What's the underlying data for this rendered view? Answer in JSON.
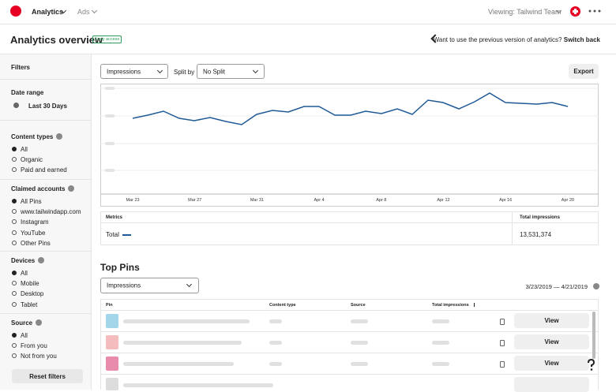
{
  "topbar": {
    "app": "Analytics",
    "ads": "Ads",
    "viewing": "Viewing: Tailwind Team"
  },
  "header": {
    "title": "Analytics overview",
    "badge": "Early access",
    "prompt": "Want to use the previous version of analytics?",
    "link": "Switch back"
  },
  "sidebar": {
    "filters": "Filters",
    "date_range": {
      "label": "Date range",
      "value": "Last 30 Days"
    },
    "groups": [
      {
        "title": "Content types",
        "options": [
          "All",
          "Organic",
          "Paid and earned"
        ]
      },
      {
        "title": "Claimed accounts",
        "options": [
          "All Pins",
          "www.tailwindapp.com",
          "Instagram",
          "YouTube",
          "Other Pins"
        ]
      },
      {
        "title": "Devices",
        "options": [
          "All",
          "Mobile",
          "Desktop",
          "Tablet"
        ]
      },
      {
        "title": "Source",
        "options": [
          "All",
          "From you",
          "Not from you"
        ]
      }
    ],
    "reset": "Reset filters"
  },
  "main": {
    "metric_select": "Impressions",
    "split_label": "Split by",
    "split_select": "No Split",
    "export": "Export",
    "x_labels": [
      "Mar 23",
      "Mar 27",
      "Mar 31",
      "Apr 4",
      "Apr 8",
      "Apr 12",
      "Apr 16",
      "Apr 20"
    ],
    "metrics": {
      "header": "Metrics",
      "column": "Total impressions",
      "row_label": "Total",
      "row_value": "13,531,374"
    },
    "top_pins": {
      "title": "Top Pins",
      "select": "Impressions",
      "date_range": "3/23/2019 — 4/21/2019",
      "columns": [
        "Pin",
        "Content type",
        "Source",
        "Total impressions"
      ],
      "view_buttons": [
        "View",
        "View",
        "View"
      ]
    }
  }
}
